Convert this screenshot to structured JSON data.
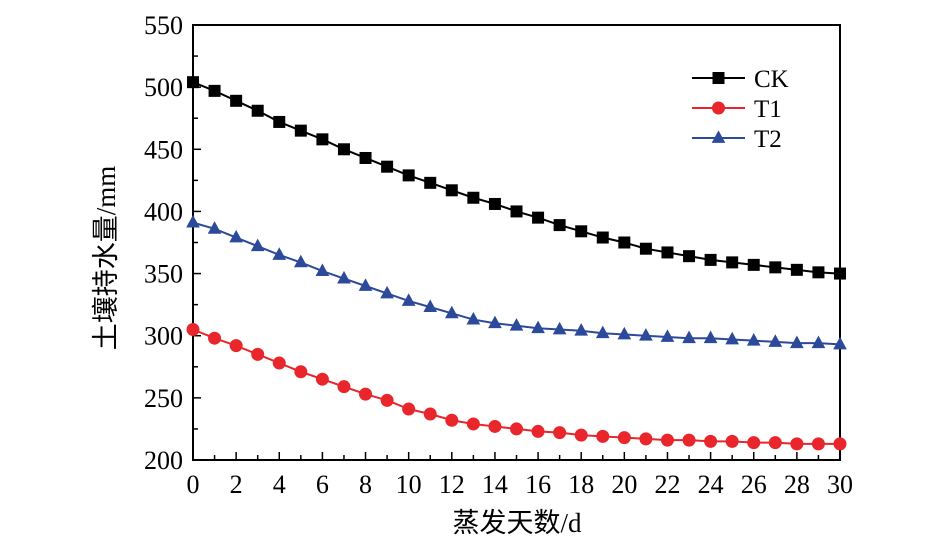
{
  "chart_data": {
    "type": "line",
    "title": "",
    "xlabel": "蒸发天数/d",
    "ylabel": "土壤持水量/mm",
    "xlim": [
      0,
      30
    ],
    "ylim": [
      200,
      550
    ],
    "x_ticks": [
      0,
      2,
      4,
      6,
      8,
      10,
      12,
      14,
      16,
      18,
      20,
      22,
      24,
      26,
      28,
      30
    ],
    "y_ticks": [
      200,
      250,
      300,
      350,
      400,
      450,
      500,
      550
    ],
    "grid": false,
    "legend_position": "top-right",
    "x": [
      0,
      1,
      2,
      3,
      4,
      5,
      6,
      7,
      8,
      9,
      10,
      11,
      12,
      13,
      14,
      15,
      16,
      17,
      18,
      19,
      20,
      21,
      22,
      23,
      24,
      25,
      26,
      27,
      28,
      29,
      30
    ],
    "series": [
      {
        "name": "CK",
        "color": "#000000",
        "marker": "square",
        "values": [
          504,
          497,
          489,
          481,
          472,
          465,
          458,
          450,
          443,
          436,
          429,
          423,
          417,
          411,
          406,
          400,
          395,
          389,
          384,
          379,
          375,
          370,
          367,
          364,
          361,
          359,
          357,
          355,
          353,
          351,
          350
        ]
      },
      {
        "name": "T1",
        "color": "#e8262b",
        "marker": "circle",
        "values": [
          305,
          298,
          292,
          285,
          278,
          271,
          265,
          259,
          253,
          248,
          241,
          237,
          232,
          229,
          227,
          225,
          223,
          222,
          220,
          219,
          218,
          217,
          216,
          216,
          215,
          215,
          214,
          214,
          213,
          213,
          213
        ]
      },
      {
        "name": "T2",
        "color": "#2d4a9a",
        "marker": "triangle",
        "values": [
          391,
          386,
          379,
          372,
          365,
          359,
          352,
          346,
          340,
          334,
          328,
          323,
          318,
          313,
          310,
          308,
          306,
          305,
          304,
          302,
          301,
          300,
          299,
          298,
          298,
          297,
          296,
          295,
          294,
          294,
          293
        ]
      }
    ]
  }
}
